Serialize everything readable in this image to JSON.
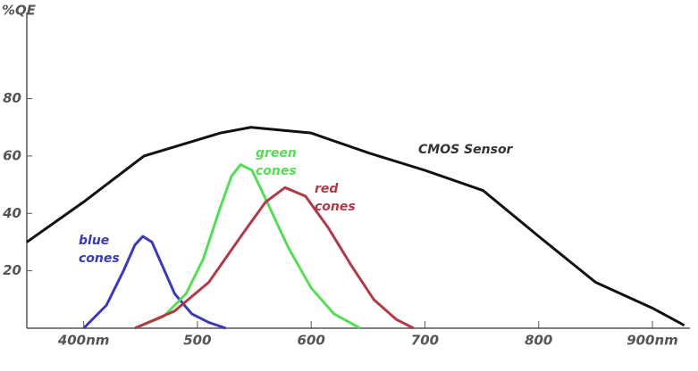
{
  "chart_data": {
    "type": "line",
    "y_label": "%QE",
    "xlim": [
      350,
      933
    ],
    "ylim": [
      0,
      110
    ],
    "xticks": [
      {
        "value": 400,
        "label": "400nm"
      },
      500,
      600,
      700,
      800,
      {
        "value": 900,
        "label": "900nm"
      }
    ],
    "yticks": [
      20,
      40,
      60,
      80
    ],
    "series": [
      {
        "name": "CMOS Sensor",
        "color": "#111111",
        "x": [
          350,
          400,
          453,
          520,
          547,
          600,
          651,
          700,
          751,
          800,
          850,
          900,
          928
        ],
        "values": [
          30,
          44,
          60,
          68,
          70,
          68,
          61,
          55,
          48,
          32,
          16,
          7,
          1
        ]
      },
      {
        "name": "blue cones",
        "color": "#3a3ab8",
        "x": [
          400,
          420,
          435,
          445,
          452,
          460,
          470,
          480,
          495,
          510,
          525
        ],
        "values": [
          0,
          8,
          20,
          29,
          32,
          30,
          21,
          12,
          5,
          2,
          0
        ]
      },
      {
        "name": "green cones",
        "color": "#55dd55",
        "x": [
          445,
          470,
          490,
          505,
          520,
          530,
          538,
          548,
          560,
          580,
          600,
          620,
          643
        ],
        "values": [
          0,
          4,
          12,
          24,
          42,
          53,
          57,
          55,
          45,
          28,
          14,
          5,
          0
        ]
      },
      {
        "name": "red cones",
        "color": "#b03a48",
        "x": [
          445,
          480,
          510,
          540,
          560,
          577,
          595,
          615,
          635,
          655,
          675,
          690
        ],
        "values": [
          0,
          6,
          16,
          33,
          44,
          49,
          46,
          35,
          22,
          10,
          3,
          0
        ]
      }
    ]
  }
}
